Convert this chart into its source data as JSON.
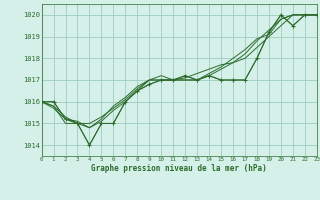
{
  "title": "Graphe pression niveau de la mer (hPa)",
  "background_color": "#d4f0e8",
  "grid_color": "#a0ccc0",
  "line_color": "#2d6b2d",
  "marker_color": "#2d6b2d",
  "xlim": [
    0,
    23
  ],
  "ylim": [
    1013.5,
    1020.5
  ],
  "yticks": [
    1014,
    1015,
    1016,
    1017,
    1018,
    1019,
    1020
  ],
  "xticks": [
    0,
    1,
    2,
    3,
    4,
    5,
    6,
    7,
    8,
    9,
    10,
    11,
    12,
    13,
    14,
    15,
    16,
    17,
    18,
    19,
    20,
    21,
    22,
    23
  ],
  "hours": [
    0,
    1,
    2,
    3,
    4,
    5,
    6,
    7,
    8,
    9,
    10,
    11,
    12,
    13,
    14,
    15,
    16,
    17,
    18,
    19,
    20,
    21,
    22,
    23
  ],
  "series": [
    [
      1016.0,
      1016.0,
      1015.2,
      1015.0,
      1014.0,
      1015.0,
      1015.0,
      1016.0,
      1016.5,
      1016.8,
      1017.0,
      1017.0,
      1017.2,
      1017.0,
      1017.2,
      1017.0,
      1017.0,
      1017.0,
      1018.0,
      1019.2,
      1020.0,
      1019.5,
      1020.0,
      1020.0
    ],
    [
      1016.0,
      1015.8,
      1015.0,
      1015.0,
      1014.8,
      1015.2,
      1015.8,
      1016.2,
      1016.7,
      1017.0,
      1017.0,
      1017.0,
      1017.1,
      1017.3,
      1017.5,
      1017.7,
      1017.8,
      1018.0,
      1018.5,
      1019.0,
      1019.5,
      1020.0,
      1020.0,
      1020.0
    ],
    [
      1016.0,
      1015.8,
      1015.3,
      1015.0,
      1015.0,
      1015.3,
      1015.7,
      1016.1,
      1016.6,
      1017.0,
      1017.2,
      1017.0,
      1017.0,
      1017.0,
      1017.2,
      1017.5,
      1017.8,
      1018.2,
      1018.8,
      1019.3,
      1019.8,
      1020.0,
      1020.0,
      1020.0
    ],
    [
      1016.0,
      1015.7,
      1015.2,
      1015.1,
      1014.8,
      1015.1,
      1015.6,
      1016.0,
      1016.5,
      1017.0,
      1017.0,
      1017.0,
      1017.0,
      1017.0,
      1017.3,
      1017.6,
      1018.0,
      1018.4,
      1018.9,
      1019.1,
      1019.8,
      1020.0,
      1020.0,
      1020.0
    ]
  ],
  "markers_series_idx": 0
}
